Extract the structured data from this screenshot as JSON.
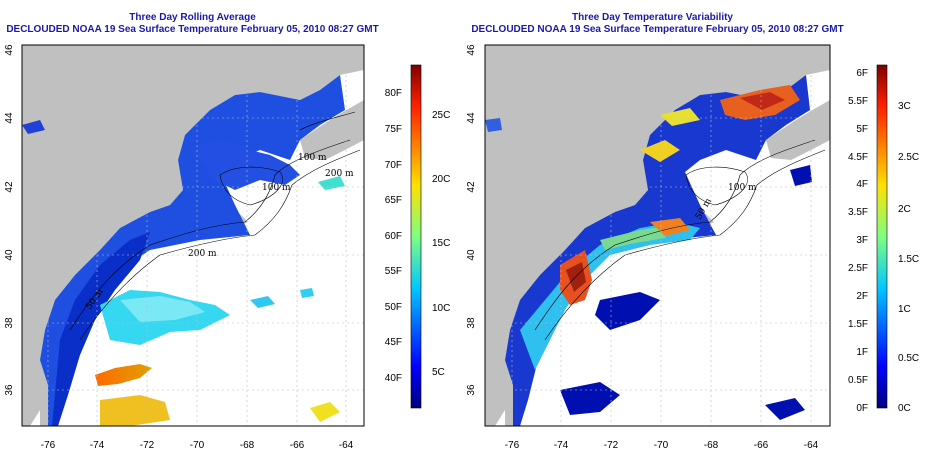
{
  "left_panel": {
    "title_line1": "Three Day Rolling Average",
    "title_line2": "DECLOUDED NOAA 19 Sea Surface Temperature February 05, 2010 08:27 GMT",
    "colorbar_f": [
      "40F",
      "45F",
      "50F",
      "55F",
      "60F",
      "65F",
      "70F",
      "75F",
      "80F"
    ],
    "colorbar_c": [
      "5C",
      "10C",
      "15C",
      "20C",
      "25C"
    ]
  },
  "right_panel": {
    "title_line1": "Three Day Temperature Variability",
    "title_line2": "DECLOUDED NOAA 19 Sea Surface Temperature February 05, 2010 08:27 GMT",
    "colorbar_f": [
      "0F",
      "0.5F",
      "1F",
      "1.5F",
      "2F",
      "2.5F",
      "3F",
      "3.5F",
      "4F",
      "4.5F",
      "5F",
      "5.5F",
      "6F"
    ],
    "colorbar_c": [
      "0C",
      "0.5C",
      "1C",
      "1.5C",
      "2C",
      "2.5C",
      "3C"
    ]
  },
  "axes": {
    "x_ticks": [
      "-76",
      "-74",
      "-72",
      "-70",
      "-68",
      "-66",
      "-64"
    ],
    "y_ticks": [
      "36",
      "38",
      "40",
      "42",
      "44",
      "46"
    ]
  },
  "contour_labels": [
    "100 m",
    "200 m",
    "100 m",
    "200 m",
    "50 m"
  ],
  "colors": {
    "land": "#c0c0c0",
    "title": "#1a1aa8",
    "ocean_cold": "#1a3fd8",
    "ocean_warm": "#e86a1a"
  }
}
